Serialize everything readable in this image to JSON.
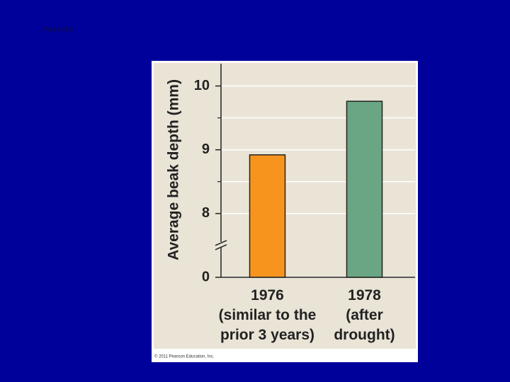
{
  "header": {
    "figure_label": "Figure 23.2",
    "copyright": "© 2011 Pearson Education, Inc."
  },
  "chart_data": {
    "type": "bar",
    "ylabel": "Average beak depth (mm)",
    "categories": [
      "1976\n(similar to the\nprior 3 years)",
      "1978\n(after\ndrought)"
    ],
    "values": [
      8.92,
      9.76
    ],
    "colors": [
      "#f7941e",
      "#6aa683"
    ],
    "ylim": [
      0,
      10.35
    ],
    "yticks": [
      0,
      8,
      9,
      10
    ],
    "yticks_minor": [
      8.5,
      9.5
    ],
    "axis_break": true,
    "grid": true
  }
}
